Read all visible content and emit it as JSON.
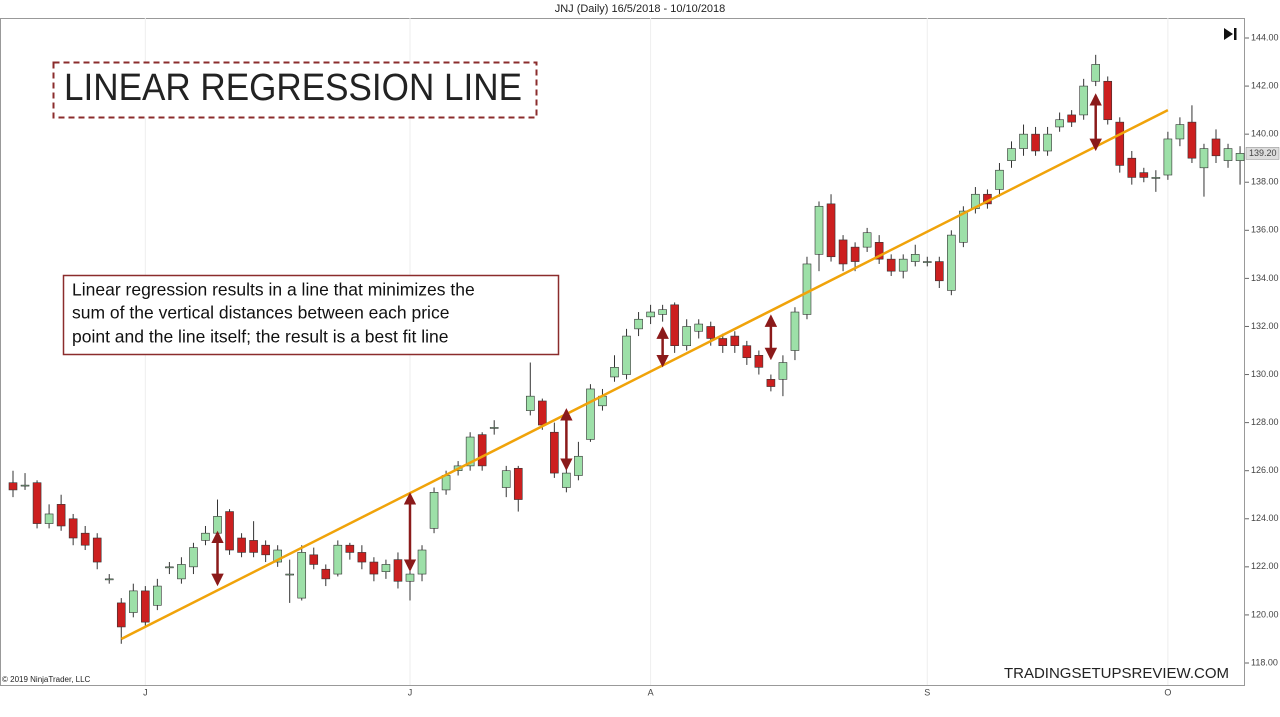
{
  "chart_data": {
    "type": "candlestick",
    "title": "JNJ (Daily)  16/5/2018 - 10/10/2018",
    "categories": [
      null,
      null,
      null,
      null,
      null,
      null,
      null,
      null,
      null,
      null,
      null,
      "J",
      null,
      null,
      null,
      null,
      null,
      null,
      null,
      null,
      null,
      null,
      null,
      null,
      null,
      null,
      null,
      null,
      null,
      null,
      null,
      null,
      null,
      "J",
      null,
      null,
      null,
      null,
      null,
      null,
      null,
      null,
      null,
      null,
      null,
      null,
      null,
      null,
      null,
      null,
      null,
      null,
      null,
      "A",
      null,
      null,
      null,
      null,
      null,
      null,
      null,
      null,
      null,
      null,
      null,
      null,
      null,
      null,
      null,
      null,
      null,
      null,
      null,
      null,
      null,
      null,
      "S",
      null,
      null,
      null,
      null,
      null,
      null,
      null,
      null,
      null,
      null,
      null,
      null,
      null,
      null,
      null,
      null,
      null,
      null,
      null,
      "O",
      null,
      null,
      null,
      null,
      null,
      null
    ],
    "series": [
      {
        "up_color": "#9de0a8",
        "down_color": "#cc1f1f",
        "edge_color": "#333333",
        "open": [
          125.5,
          125.4,
          125.5,
          123.8,
          124.6,
          124.0,
          123.4,
          123.2,
          121.5,
          120.5,
          120.1,
          121.0,
          120.4,
          122.0,
          121.5,
          122.0,
          123.1,
          123.4,
          124.3,
          123.2,
          123.1,
          122.9,
          122.2,
          121.7,
          120.7,
          122.5,
          121.9,
          121.7,
          122.9,
          122.6,
          122.2,
          121.8,
          122.3,
          121.4,
          121.7,
          123.6,
          125.2,
          126.0,
          126.2,
          127.5,
          127.8,
          125.3,
          126.1,
          128.5,
          128.9,
          127.6,
          125.3,
          125.8,
          127.3,
          128.7,
          129.9,
          130.0,
          131.9,
          132.4,
          132.5,
          132.9,
          131.2,
          131.8,
          132.0,
          131.5,
          131.6,
          131.2,
          130.8,
          129.8,
          129.8,
          131.0,
          132.5,
          135.0,
          137.1,
          135.6,
          135.3,
          135.3,
          135.5,
          134.8,
          134.3,
          134.7,
          134.7,
          134.7,
          133.5,
          135.5,
          136.9,
          137.5,
          137.7,
          138.9,
          139.4,
          140.0,
          139.3,
          140.3,
          140.8,
          140.8,
          142.2,
          142.2,
          140.5,
          139.0,
          138.4,
          138.2,
          138.3,
          139.8,
          140.5,
          138.6,
          139.8,
          138.9,
          138.9
        ],
        "high": [
          126.0,
          125.9,
          125.6,
          124.6,
          125.0,
          124.2,
          123.7,
          123.4,
          121.7,
          120.7,
          121.3,
          121.2,
          121.5,
          122.2,
          122.4,
          123.0,
          123.7,
          124.8,
          124.4,
          123.4,
          123.9,
          123.1,
          122.9,
          122.3,
          122.9,
          122.8,
          122.1,
          123.1,
          123.0,
          122.9,
          122.4,
          122.3,
          122.6,
          121.9,
          122.9,
          125.3,
          126.0,
          126.4,
          127.6,
          127.6,
          128.1,
          126.2,
          126.2,
          130.5,
          129.0,
          128.0,
          126.1,
          127.2,
          129.6,
          129.4,
          130.8,
          131.9,
          132.6,
          132.9,
          132.9,
          133.0,
          132.3,
          132.3,
          132.2,
          131.7,
          131.8,
          131.4,
          131.0,
          130.0,
          130.8,
          132.8,
          134.9,
          137.2,
          137.5,
          135.8,
          135.5,
          136.1,
          135.8,
          135.0,
          135.0,
          135.4,
          134.9,
          134.9,
          136.0,
          137.0,
          137.8,
          137.7,
          138.8,
          139.7,
          140.4,
          140.3,
          140.3,
          140.9,
          141.0,
          142.3,
          143.3,
          142.4,
          140.7,
          139.3,
          138.6,
          138.5,
          140.1,
          140.7,
          141.2,
          139.6,
          140.2,
          139.6,
          139.5
        ],
        "low": [
          124.9,
          125.2,
          123.6,
          123.6,
          123.5,
          122.9,
          122.7,
          121.9,
          121.3,
          118.8,
          119.9,
          119.5,
          120.2,
          121.7,
          121.3,
          121.7,
          122.9,
          123.2,
          122.5,
          122.4,
          122.4,
          122.2,
          122.0,
          120.5,
          120.6,
          121.9,
          121.2,
          121.6,
          122.3,
          121.9,
          121.4,
          121.5,
          121.1,
          120.6,
          121.4,
          123.4,
          125.0,
          125.8,
          126.0,
          126.0,
          127.5,
          124.9,
          124.3,
          128.3,
          127.7,
          125.7,
          125.1,
          125.6,
          127.2,
          128.5,
          129.7,
          129.8,
          131.6,
          132.1,
          132.2,
          130.9,
          131.0,
          131.5,
          131.2,
          130.9,
          130.9,
          130.4,
          130.0,
          129.3,
          129.1,
          130.6,
          132.3,
          134.3,
          134.7,
          134.3,
          134.3,
          135.1,
          134.6,
          134.1,
          134.0,
          134.5,
          134.5,
          133.6,
          133.3,
          135.3,
          136.7,
          136.9,
          137.4,
          138.6,
          139.1,
          139.1,
          139.1,
          140.1,
          140.3,
          140.6,
          142.0,
          140.4,
          138.4,
          137.9,
          138.0,
          137.6,
          138.1,
          139.5,
          138.8,
          137.4,
          138.8,
          138.6,
          137.9
        ],
        "close": [
          125.2,
          125.4,
          123.8,
          124.2,
          123.7,
          123.2,
          122.9,
          122.2,
          121.5,
          119.5,
          121.0,
          119.7,
          121.2,
          122.0,
          122.1,
          122.8,
          123.4,
          124.1,
          122.7,
          122.6,
          122.6,
          122.5,
          122.7,
          121.7,
          122.6,
          122.1,
          121.5,
          122.9,
          122.6,
          122.2,
          121.7,
          122.1,
          121.4,
          121.7,
          122.7,
          125.1,
          125.8,
          126.2,
          127.4,
          126.2,
          127.8,
          126.0,
          124.8,
          129.1,
          127.9,
          125.9,
          125.9,
          126.6,
          129.4,
          129.1,
          130.3,
          131.6,
          132.3,
          132.6,
          132.7,
          131.2,
          132.0,
          132.1,
          131.5,
          131.2,
          131.2,
          130.7,
          130.3,
          129.5,
          130.5,
          132.6,
          134.6,
          137.0,
          134.9,
          134.6,
          134.7,
          135.9,
          134.8,
          134.3,
          134.8,
          135.0,
          134.7,
          133.9,
          135.8,
          136.8,
          137.5,
          137.1,
          138.5,
          139.4,
          140.0,
          139.3,
          140.0,
          140.6,
          140.5,
          142.0,
          142.9,
          140.6,
          138.7,
          138.2,
          138.2,
          138.2,
          139.8,
          140.4,
          139.0,
          139.4,
          139.1,
          139.4,
          139.2
        ]
      }
    ],
    "ylim": [
      118,
      144
    ],
    "yticks": [
      {
        "value": 118,
        "label": "118.00"
      },
      {
        "value": 120,
        "label": "120.00"
      },
      {
        "value": 122,
        "label": "122.00"
      },
      {
        "value": 124,
        "label": "124.00"
      },
      {
        "value": 126,
        "label": "126.00"
      },
      {
        "value": 128,
        "label": "128.00"
      },
      {
        "value": 130,
        "label": "130.00"
      },
      {
        "value": 132,
        "label": "132.00"
      },
      {
        "value": 134,
        "label": "134.00"
      },
      {
        "value": 136,
        "label": "136.00"
      },
      {
        "value": 138,
        "label": "138.00"
      },
      {
        "value": 140,
        "label": "140.00"
      },
      {
        "value": 142,
        "label": "142.00"
      },
      {
        "value": 144,
        "label": "144.00"
      }
    ],
    "last_price": {
      "value": 139.2,
      "label": "139.20"
    },
    "regression": {
      "color": "#f0a30a",
      "x": [
        9,
        96
      ],
      "y": [
        119.0,
        141.0
      ]
    },
    "arrows": {
      "color": "#8b1a1a",
      "x": [
        17,
        33,
        46,
        54,
        63,
        90
      ],
      "from": [
        123.4,
        125.0,
        128.5,
        131.9,
        132.4,
        141.6
      ],
      "to": [
        121.3,
        121.9,
        126.1,
        130.4,
        130.7,
        139.4
      ]
    },
    "heading": "LINEAR REGRESSION LINE",
    "annotation_lines": [
      "Linear regression results in a line that minimizes the",
      "sum of the vertical distances between each price",
      "point and the line itself; the result is a best fit line"
    ],
    "watermark": "TRADINGSETUPSREVIEW.COM",
    "copyright": "© 2019 NinjaTrader, LLC"
  }
}
